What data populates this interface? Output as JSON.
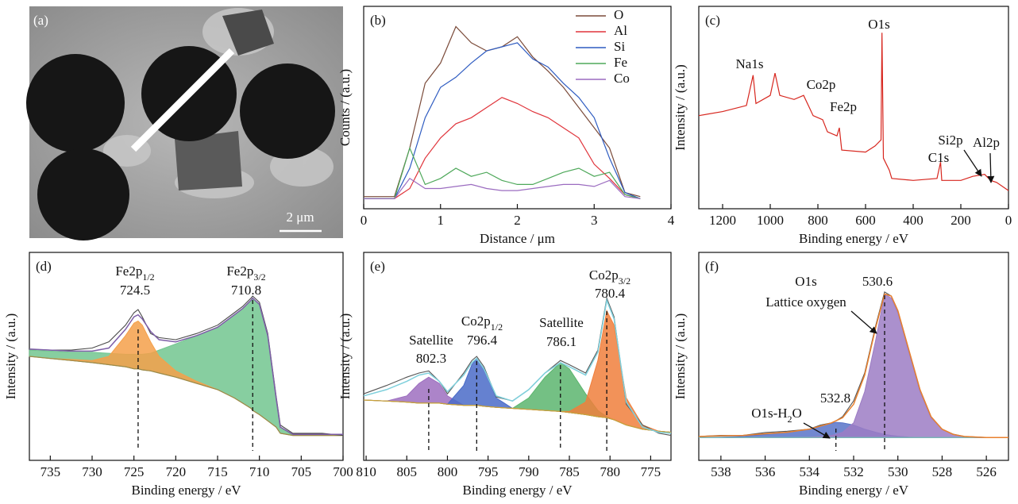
{
  "chart_data": [
    {
      "type": "image",
      "panel_label": "(a)",
      "scale_bar": "2 μm"
    },
    {
      "type": "line",
      "panel_label": "(b)",
      "xlabel": "Distance / μm",
      "ylabel": "Counts / (a.u.)",
      "xlim": [
        0,
        4
      ],
      "xticks": [
        0,
        1,
        2,
        3,
        4
      ],
      "ylim": [
        0,
        100
      ],
      "legend": "upper right",
      "x": [
        0,
        0.2,
        0.4,
        0.6,
        0.8,
        1.0,
        1.2,
        1.4,
        1.6,
        1.8,
        2.0,
        2.2,
        2.4,
        2.6,
        2.8,
        3.0,
        3.2,
        3.4,
        3.6
      ],
      "series": [
        {
          "name": "O",
          "color": "#7b4b3a",
          "values": [
            6,
            6,
            6,
            30,
            62,
            72,
            90,
            82,
            78,
            80,
            85,
            75,
            68,
            60,
            50,
            40,
            30,
            8,
            6
          ]
        },
        {
          "name": "Al",
          "color": "#e0343b",
          "values": [
            5,
            5,
            5,
            10,
            25,
            35,
            42,
            45,
            50,
            55,
            52,
            48,
            45,
            40,
            35,
            22,
            15,
            7,
            5
          ]
        },
        {
          "name": "Si",
          "color": "#2f5cc1",
          "values": [
            5,
            5,
            5,
            20,
            45,
            60,
            65,
            72,
            78,
            80,
            82,
            74,
            70,
            62,
            55,
            45,
            25,
            8,
            5
          ]
        },
        {
          "name": "Fe",
          "color": "#4ea85a",
          "values": [
            5,
            5,
            5,
            30,
            12,
            15,
            20,
            16,
            18,
            14,
            12,
            12,
            15,
            18,
            20,
            16,
            18,
            7,
            5
          ]
        },
        {
          "name": "Co",
          "color": "#9b6cc0",
          "values": [
            5,
            5,
            5,
            15,
            10,
            10,
            11,
            12,
            10,
            9,
            9,
            10,
            11,
            12,
            12,
            11,
            14,
            6,
            5
          ]
        }
      ]
    },
    {
      "type": "line",
      "panel_label": "(c)",
      "xlabel": "Binding energy / eV",
      "ylabel": "Intensity / (a.u.)",
      "xlim": [
        1300,
        0
      ],
      "xticks": [
        1200,
        1000,
        800,
        600,
        400,
        200,
        0
      ],
      "ylim": [
        0,
        100
      ],
      "x": [
        1300,
        1200,
        1100,
        1072,
        1060,
        1000,
        980,
        960,
        900,
        860,
        840,
        820,
        780,
        760,
        720,
        710,
        700,
        600,
        560,
        535,
        531,
        525,
        500,
        490,
        400,
        300,
        285,
        280,
        200,
        150,
        100,
        75,
        50,
        0
      ],
      "series": [
        {
          "color": "#d7261e",
          "values": [
            46,
            48,
            51,
            66,
            52,
            56,
            67,
            56,
            54,
            56,
            51,
            46,
            44,
            38,
            36,
            40,
            29,
            28,
            31,
            34,
            87,
            25,
            19,
            15,
            14,
            15,
            23,
            14,
            14,
            16,
            17,
            14,
            13,
            9
          ]
        }
      ],
      "annotations": [
        "O1s",
        "Na1s",
        "Co2p",
        "Fe2p",
        "Si2p",
        "C1s",
        "Al2p"
      ]
    },
    {
      "type": "area",
      "panel_label": "(d)",
      "xlabel": "Binding energy / eV",
      "ylabel": "Intensity / (a.u.)",
      "xlim": [
        737.5,
        700
      ],
      "xticks": [
        735,
        730,
        725,
        720,
        715,
        710,
        705,
        700
      ],
      "ylim": [
        0,
        100
      ],
      "x": [
        737.5,
        735,
        732.5,
        730,
        728,
        726,
        725,
        724.5,
        724,
        723,
        722,
        720,
        717.5,
        715,
        713,
        712,
        711,
        710.8,
        710,
        709,
        708,
        707.5,
        706,
        705,
        702.5,
        700
      ],
      "components": [
        {
          "color": "#72c68f",
          "values": [
            53,
            52.5,
            52,
            52,
            51.5,
            51,
            51,
            51,
            51,
            51.5,
            53,
            56,
            60,
            64,
            70,
            73,
            77,
            78,
            75,
            60,
            30,
            16,
            12,
            12,
            12,
            12
          ]
        },
        {
          "color": "#f5a04a",
          "values": [
            50,
            49,
            48.5,
            48,
            50,
            60,
            66,
            67,
            65,
            57,
            50,
            43,
            38,
            34,
            30,
            27.5,
            25,
            24,
            22,
            19,
            16,
            13,
            12,
            12,
            12,
            12
          ]
        }
      ],
      "background": {
        "color": "#9a8a4a",
        "values": [
          50,
          49,
          48,
          47,
          46,
          45,
          44,
          44,
          43.5,
          43,
          42,
          40,
          37,
          34,
          30,
          27.5,
          25,
          24,
          22,
          19,
          16,
          13,
          12,
          12,
          12,
          12
        ]
      },
      "raw": {
        "color": "#4a4a4a",
        "values": [
          53.4,
          53,
          53,
          54,
          57,
          65,
          71,
          72.5,
          69,
          61,
          59,
          58,
          61,
          65,
          71,
          74,
          78,
          79,
          76,
          61,
          31,
          17,
          13,
          13,
          13,
          12
        ]
      },
      "envelope": {
        "color": "#7e5fa8",
        "values": [
          53.5,
          53,
          52.5,
          52.5,
          54,
          63,
          69,
          70,
          68,
          62,
          58,
          57,
          60,
          64,
          70,
          73,
          77,
          78,
          75,
          60,
          30,
          16,
          12.5,
          12.5,
          12.5,
          12.5
        ]
      },
      "peaks": [
        {
          "lines": [
            [
              {
                "text": "Fe2p"
              },
              {
                "text": "1/2",
                "sub": true
              }
            ]
          ],
          "position": 724.5
        },
        {
          "lines": [
            [
              {
                "text": "Fe2p"
              },
              {
                "text": "3/2",
                "sub": true
              }
            ]
          ],
          "position": 710.8
        }
      ]
    },
    {
      "type": "area",
      "panel_label": "(e)",
      "xlabel": "Binding energy / eV",
      "ylabel": "Intensity / (a.u.)",
      "xlim": [
        810.3,
        772.5
      ],
      "xticks": [
        810,
        805,
        800,
        795,
        790,
        785,
        780,
        775
      ],
      "ylim": [
        0,
        100
      ],
      "x": [
        810.3,
        807.5,
        805,
        803.5,
        802.3,
        801,
        800,
        798,
        797,
        796.4,
        795.5,
        794,
        792,
        790,
        788,
        786.1,
        785,
        783,
        781.5,
        780.4,
        779.5,
        778,
        776,
        774,
        772.5
      ],
      "components": [
        {
          "color": "#9d6fbf",
          "values": [
            29,
            28.5,
            31,
            37,
            40,
            37,
            31,
            26.5,
            26.5,
            26.5,
            26,
            25.5,
            25,
            24.5,
            24,
            23.5,
            23,
            22,
            21,
            20.5,
            19.5,
            17,
            15,
            14,
            13.5
          ]
        },
        {
          "color": "#4a6bc8",
          "values": [
            29,
            28.5,
            28,
            27.5,
            27.5,
            27.5,
            27,
            36,
            46,
            49,
            44,
            30,
            25,
            24.5,
            24,
            23.5,
            23,
            22,
            21,
            20.5,
            19.5,
            17,
            15,
            14,
            13.5
          ]
        },
        {
          "color": "#5cb56e",
          "values": [
            29,
            28.5,
            28,
            27.5,
            27.5,
            27.5,
            27,
            26.5,
            26.5,
            26.5,
            26,
            25.5,
            25,
            30,
            40,
            47,
            44,
            32,
            24,
            21,
            19.5,
            17,
            15,
            14,
            13.5
          ]
        },
        {
          "color": "#f07f3c",
          "values": [
            29,
            28.5,
            28,
            27.5,
            27.5,
            27.5,
            27,
            26.5,
            26.5,
            26.5,
            26,
            25.5,
            25,
            24.5,
            24,
            23.5,
            23.5,
            28,
            48,
            72,
            65,
            30,
            17,
            14,
            13.5
          ]
        }
      ],
      "background": {
        "color": "#c8a23a",
        "values": [
          29,
          28.5,
          28,
          27.5,
          27.5,
          27.5,
          27,
          26.5,
          26.5,
          26.5,
          26,
          25.5,
          25,
          24.5,
          24,
          23.5,
          23,
          22,
          21,
          20.5,
          19.5,
          17,
          15,
          14,
          13.5
        ]
      },
      "raw": {
        "color": "#555555",
        "values": [
          32,
          36,
          40,
          42,
          43,
          38,
          32,
          42,
          48,
          50,
          45,
          30.5,
          28.6,
          34,
          42,
          48,
          46,
          42,
          53,
          78,
          69,
          27,
          17,
          13,
          12
        ]
      },
      "envelope": {
        "color": "#7fd0dc",
        "values": [
          31,
          34,
          38,
          41,
          42,
          38,
          33,
          41,
          47,
          49,
          44,
          31,
          28.5,
          34,
          42,
          47,
          45,
          41,
          52,
          77,
          68,
          28,
          16,
          13.5,
          13
        ]
      },
      "peaks": [
        {
          "lines": [
            [
              {
                "text": "Satellite"
              }
            ]
          ],
          "position": 802.3
        },
        {
          "lines": [
            [
              {
                "text": "Co2p"
              },
              {
                "text": "1/2",
                "sub": true
              }
            ]
          ],
          "position": 796.4
        },
        {
          "lines": [
            [
              {
                "text": "Satellite"
              }
            ]
          ],
          "position": 786.1
        },
        {
          "lines": [
            [
              {
                "text": "Co2p"
              },
              {
                "text": "3/2",
                "sub": true
              }
            ]
          ],
          "position": 780.4
        }
      ]
    },
    {
      "type": "area",
      "panel_label": "(f)",
      "xlabel": "Binding energy / eV",
      "ylabel": "Intensity / (a.u.)",
      "xlim": [
        539,
        525
      ],
      "xticks": [
        538,
        536,
        534,
        532,
        530,
        528,
        526
      ],
      "ylim": [
        0,
        100
      ],
      "x": [
        539,
        538,
        537,
        536,
        535,
        534,
        533.5,
        533,
        532.8,
        532.5,
        532,
        531.5,
        531,
        530.6,
        530.3,
        530,
        529.5,
        529,
        528.5,
        528,
        527.5,
        527,
        526,
        525
      ],
      "components": [
        {
          "color": "#5873c8",
          "values": [
            11,
            11.2,
            11.5,
            12.5,
            13.5,
            15,
            16.5,
            17.8,
            18.3,
            18,
            17,
            15,
            13.5,
            12.5,
            12,
            11.6,
            11.2,
            11,
            11,
            11,
            11,
            11,
            11,
            11
          ]
        },
        {
          "color": "#9c7cc4",
          "values": [
            11,
            11,
            11,
            11,
            11,
            11.2,
            11.5,
            12,
            12.5,
            13.5,
            18,
            33,
            58,
            80,
            78,
            71,
            52,
            33,
            20.5,
            15,
            12.5,
            11.5,
            11,
            11
          ]
        }
      ],
      "background": {
        "color": "#6fbfb0",
        "values": [
          11,
          11,
          11,
          11,
          11,
          11,
          11,
          11,
          11,
          11,
          11,
          11,
          11,
          11,
          11,
          11,
          11,
          11,
          11,
          11,
          11,
          11,
          11,
          11
        ]
      },
      "raw": {
        "color": "#555555",
        "values": [
          11.5,
          12,
          12,
          13.4,
          14,
          15,
          17,
          18,
          19,
          21,
          28.6,
          42,
          65,
          81,
          79,
          72,
          53,
          34,
          21,
          15,
          12.6,
          11.5,
          11,
          11
        ]
      },
      "envelope": {
        "color": "#e8802e",
        "values": [
          11.5,
          11.8,
          12,
          12.8,
          13.5,
          15,
          16.5,
          18,
          19,
          20.5,
          27,
          41,
          64,
          80,
          79,
          72,
          53,
          34,
          21,
          15,
          12.5,
          11.5,
          11,
          11
        ]
      },
      "peaks": [
        {
          "lines": [
            [
              {
                "text": "O1s"
              }
            ],
            [
              {
                "text": "Lattice oxygen"
              }
            ]
          ],
          "position": 530.6
        },
        {
          "lines": [
            [
              {
                "text": "O1s-H"
              },
              {
                "text": "2",
                "sub": true
              },
              {
                "text": "O"
              }
            ]
          ],
          "position": 532.8
        }
      ]
    }
  ]
}
